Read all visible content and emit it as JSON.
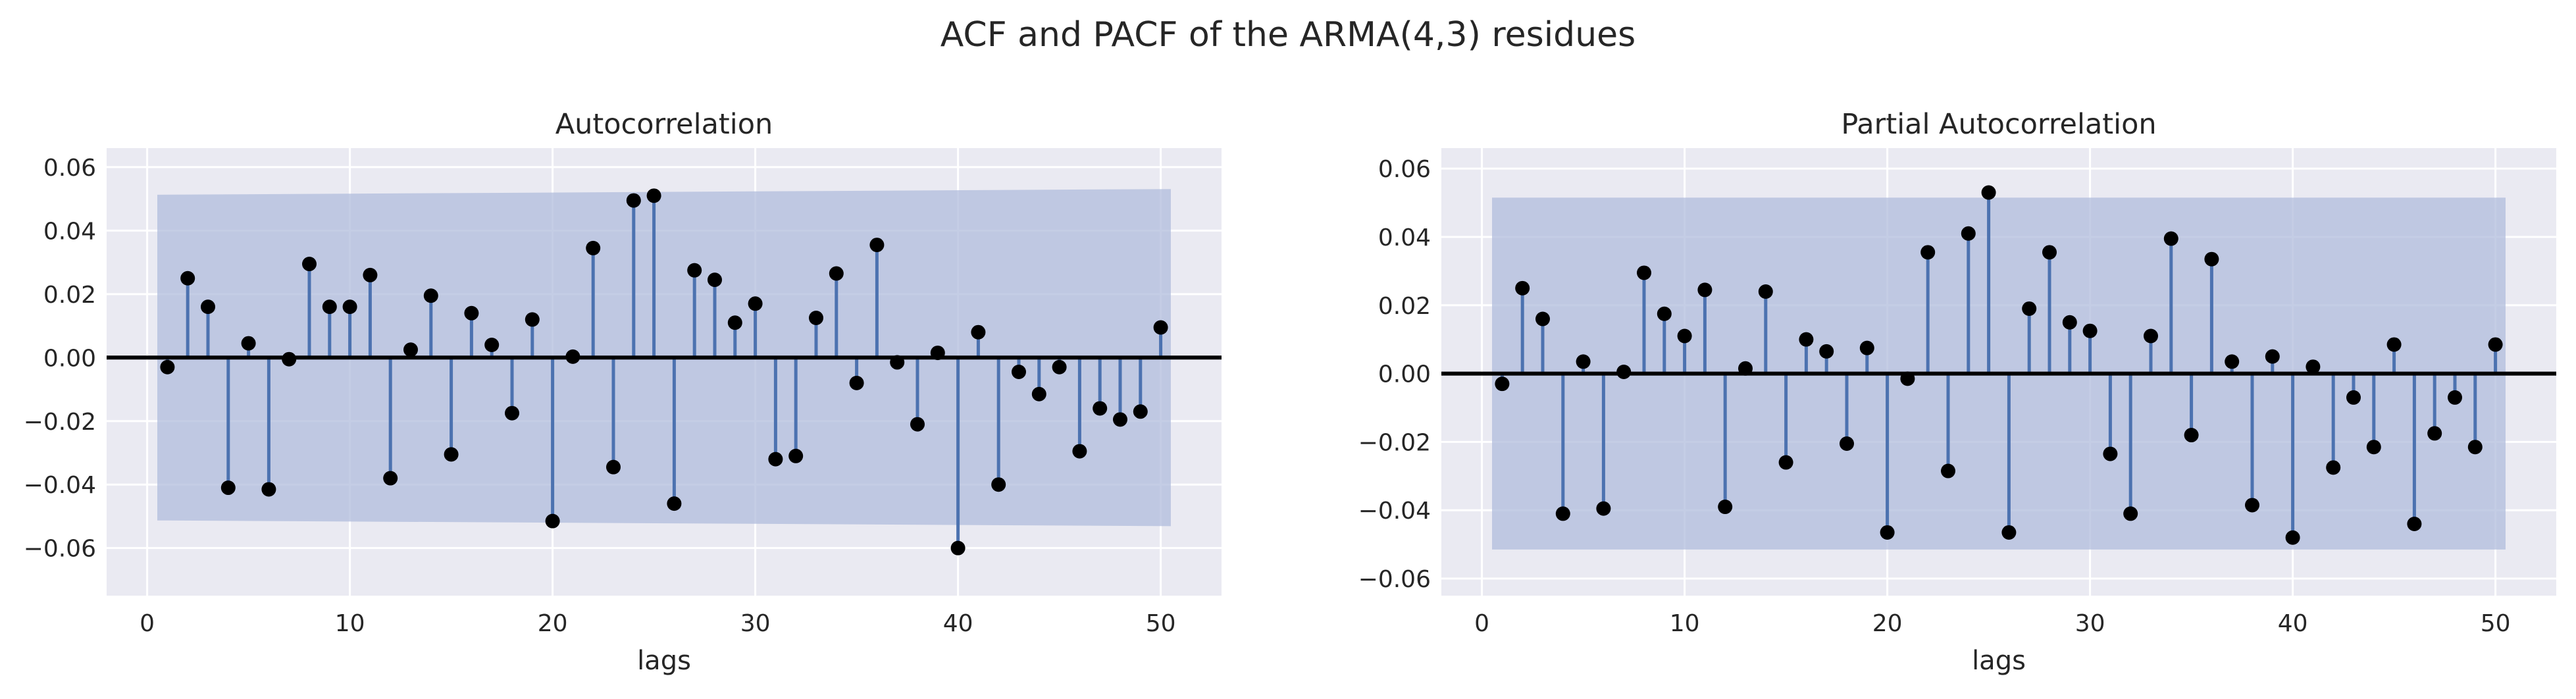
{
  "figure": {
    "title": "ACF and PACF of the ARMA(4,3) residues"
  },
  "colors": {
    "plot_background": "#eaeaf2",
    "grid": "#ffffff",
    "stem": "#4c72b0",
    "marker": "#000000",
    "confidence_band": "#b0bcdc",
    "zero_line": "#000000"
  },
  "chart_data": [
    {
      "type": "stem",
      "title": "Autocorrelation",
      "xlabel": "lags",
      "ylabel": "",
      "xlim": [
        -2,
        53
      ],
      "ylim": [
        -0.075,
        0.066
      ],
      "x_ticks": [
        0,
        10,
        20,
        30,
        40,
        50
      ],
      "y_ticks": [
        -0.06,
        -0.04,
        -0.02,
        0.0,
        0.02,
        0.04,
        0.06
      ],
      "y_tick_labels": [
        "−0.06",
        "−0.04",
        "−0.02",
        "0.00",
        "0.02",
        "0.04",
        "0.06"
      ],
      "grid": true,
      "confidence_band": {
        "x": [
          0.5,
          50.5
        ],
        "upper": [
          0.0513,
          0.0531
        ],
        "lower": [
          -0.0513,
          -0.0531
        ]
      },
      "lags": [
        1,
        2,
        3,
        4,
        5,
        6,
        7,
        8,
        9,
        10,
        11,
        12,
        13,
        14,
        15,
        16,
        17,
        18,
        19,
        20,
        21,
        22,
        23,
        24,
        25,
        26,
        27,
        28,
        29,
        30,
        31,
        32,
        33,
        34,
        35,
        36,
        37,
        38,
        39,
        40,
        41,
        42,
        43,
        44,
        45,
        46,
        47,
        48,
        49,
        50
      ],
      "values": [
        -0.003,
        0.025,
        0.016,
        -0.041,
        0.0045,
        -0.0415,
        -0.0005,
        0.0295,
        0.016,
        0.016,
        0.026,
        -0.038,
        0.0025,
        0.0195,
        -0.0305,
        0.014,
        0.004,
        -0.0175,
        0.012,
        -0.0515,
        0.0003,
        0.0345,
        -0.0345,
        0.0495,
        0.051,
        -0.046,
        0.0275,
        0.0245,
        0.011,
        0.017,
        -0.032,
        -0.031,
        0.0125,
        0.0265,
        -0.008,
        0.0355,
        -0.0015,
        -0.021,
        0.0015,
        -0.06,
        0.008,
        -0.04,
        -0.0045,
        -0.0115,
        -0.003,
        -0.0295,
        -0.016,
        -0.0195,
        -0.017,
        0.0095
      ]
    },
    {
      "type": "stem",
      "title": "Partial Autocorrelation",
      "xlabel": "lags",
      "ylabel": "",
      "xlim": [
        -2,
        53
      ],
      "ylim": [
        -0.065,
        0.066
      ],
      "x_ticks": [
        0,
        10,
        20,
        30,
        40,
        50
      ],
      "y_ticks": [
        -0.06,
        -0.04,
        -0.02,
        0.0,
        0.02,
        0.04,
        0.06
      ],
      "y_tick_labels": [
        "−0.06",
        "−0.04",
        "−0.02",
        "0.00",
        "0.02",
        "0.04",
        "0.06"
      ],
      "grid": true,
      "confidence_band": {
        "x": [
          0.5,
          50.5
        ],
        "upper": [
          0.0515,
          0.0515
        ],
        "lower": [
          -0.0515,
          -0.0515
        ]
      },
      "lags": [
        1,
        2,
        3,
        4,
        5,
        6,
        7,
        8,
        9,
        10,
        11,
        12,
        13,
        14,
        15,
        16,
        17,
        18,
        19,
        20,
        21,
        22,
        23,
        24,
        25,
        26,
        27,
        28,
        29,
        30,
        31,
        32,
        33,
        34,
        35,
        36,
        37,
        38,
        39,
        40,
        41,
        42,
        43,
        44,
        45,
        46,
        47,
        48,
        49,
        50
      ],
      "values": [
        -0.003,
        0.025,
        0.016,
        -0.041,
        0.0035,
        -0.0395,
        0.0005,
        0.0295,
        0.0175,
        0.011,
        0.0245,
        -0.039,
        0.0015,
        0.024,
        -0.026,
        0.01,
        0.0065,
        -0.0205,
        0.0075,
        -0.0465,
        -0.0015,
        0.0355,
        -0.0285,
        0.041,
        0.053,
        -0.0465,
        0.019,
        0.0355,
        0.015,
        0.0125,
        -0.0235,
        -0.041,
        0.011,
        0.0395,
        -0.018,
        0.0335,
        0.0035,
        -0.0385,
        0.005,
        -0.048,
        0.002,
        -0.0275,
        -0.007,
        -0.0215,
        0.0085,
        -0.044,
        -0.0175,
        -0.007,
        -0.0215,
        0.0085
      ]
    }
  ]
}
